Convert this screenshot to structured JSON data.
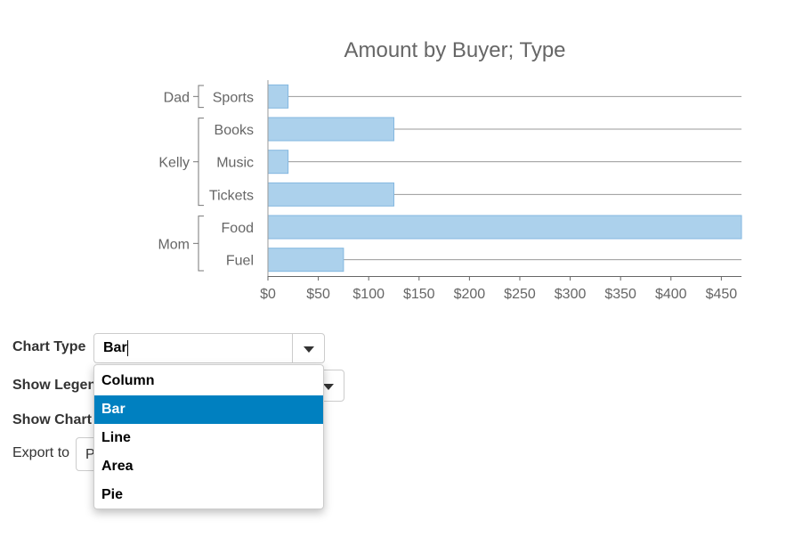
{
  "chart_data": {
    "type": "bar",
    "title": "Amount by Buyer; Type",
    "groups": [
      {
        "name": "Dad",
        "items": [
          "Sports"
        ]
      },
      {
        "name": "Kelly",
        "items": [
          "Books",
          "Music",
          "Tickets"
        ]
      },
      {
        "name": "Mom",
        "items": [
          "Food",
          "Fuel"
        ]
      }
    ],
    "categories": [
      "Sports",
      "Books",
      "Music",
      "Tickets",
      "Food",
      "Fuel"
    ],
    "values": [
      20,
      125,
      20,
      125,
      470,
      75
    ],
    "xlim": [
      0,
      470
    ],
    "ticks": [
      "$0",
      "$50",
      "$100",
      "$150",
      "$200",
      "$250",
      "$300",
      "$350",
      "$400",
      "$450"
    ],
    "tick_values": [
      0,
      50,
      100,
      150,
      200,
      250,
      300,
      350,
      400,
      450
    ],
    "bar_color": "#acd1ec",
    "bar_border": "#84b8e0",
    "xlabel": "",
    "ylabel": "",
    "grid": false,
    "legend": "none"
  },
  "controls": {
    "chart_type_label": "Chart Type",
    "chart_type_value": "Bar",
    "show_legend_label": "Show Legend",
    "show_chart_label": "Show Chart",
    "export_label": "Export to",
    "export_value": "PNG"
  },
  "dropdown": {
    "options": [
      "Column",
      "Bar",
      "Line",
      "Area",
      "Pie"
    ],
    "selected": "Bar",
    "selected_color": "#0080c0"
  }
}
